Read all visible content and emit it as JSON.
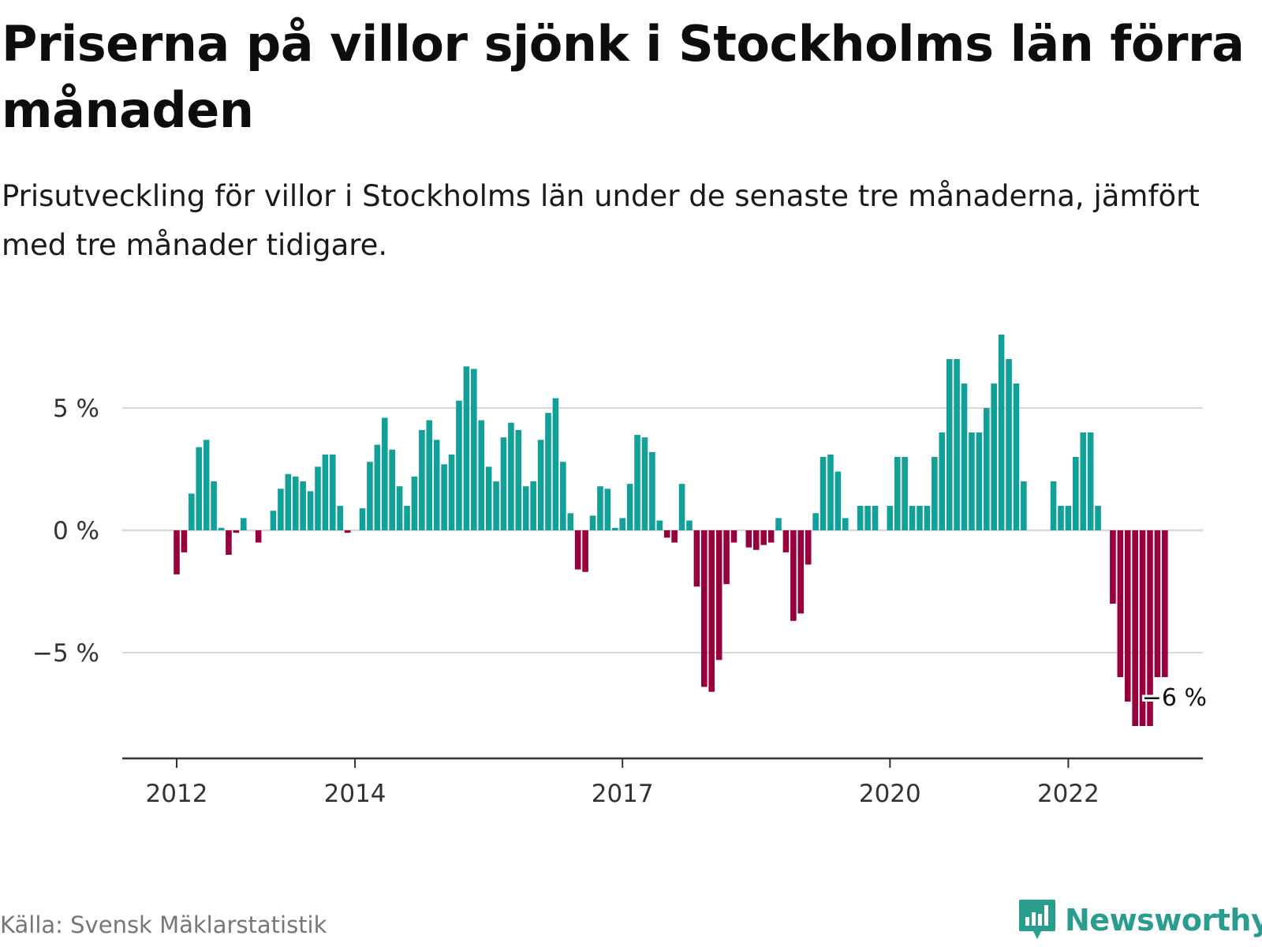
{
  "header": {
    "title": "Priserna på villor sjönk i Stockholms län förra månaden",
    "subtitle": "Prisutveckling för villor i Stockholms län under de senaste tre månaderna, jämfört med tre månader tidigare."
  },
  "footer": {
    "source": "Källa: Svensk Mäklarstatistik",
    "brand": "Newsworthy"
  },
  "colors": {
    "positive": "#12a199",
    "negative": "#98003d",
    "grid": "#d9d9d9",
    "axis": "#333333",
    "brand": "#2a9d8f"
  },
  "chart_data": {
    "type": "bar",
    "ylabel": "",
    "xlabel": "",
    "ylim": [
      -9.5,
      8.5
    ],
    "yticks": [
      {
        "value": 5,
        "label": "5 %"
      },
      {
        "value": 0,
        "label": "0 %"
      },
      {
        "value": -5,
        "label": "−5 %"
      }
    ],
    "xticks": [
      {
        "label": "2012",
        "index": 0
      },
      {
        "label": "2014",
        "index": 24
      },
      {
        "label": "2017",
        "index": 60
      },
      {
        "label": "2020",
        "index": 96
      },
      {
        "label": "2022",
        "index": 120
      }
    ],
    "grid": true,
    "annotation": {
      "label": "−6 %",
      "index": 133,
      "value": -6
    },
    "values": [
      -1.8,
      -0.9,
      1.5,
      3.4,
      3.7,
      2.0,
      0.1,
      -1.0,
      -0.1,
      0.5,
      null,
      -0.5,
      null,
      0.8,
      1.7,
      2.3,
      2.2,
      2.0,
      1.6,
      2.6,
      3.1,
      3.1,
      1.0,
      -0.1,
      null,
      0.9,
      2.8,
      3.5,
      4.6,
      3.3,
      1.8,
      1.0,
      2.2,
      4.1,
      4.5,
      3.7,
      2.7,
      3.1,
      5.3,
      6.7,
      6.6,
      4.5,
      2.6,
      2.0,
      3.8,
      4.4,
      4.1,
      1.8,
      2.0,
      3.7,
      4.8,
      5.4,
      2.8,
      0.7,
      -1.6,
      -1.7,
      0.6,
      1.8,
      1.7,
      0.1,
      0.5,
      1.9,
      3.9,
      3.8,
      3.2,
      0.4,
      -0.3,
      -0.5,
      1.9,
      0.4,
      -2.3,
      -6.4,
      -6.6,
      -5.3,
      -2.2,
      -0.5,
      null,
      -0.7,
      -0.8,
      -0.6,
      -0.5,
      0.5,
      -0.9,
      -3.7,
      -3.4,
      -1.4,
      0.7,
      3.0,
      3.1,
      2.4,
      0.5,
      null,
      1.0,
      1.0,
      1.0,
      null,
      1.0,
      3.0,
      3.0,
      1.0,
      1.0,
      1.0,
      3.0,
      4.0,
      7.0,
      7.0,
      6.0,
      4.0,
      4.0,
      5.0,
      6.0,
      8.0,
      7.0,
      6.0,
      2.0,
      null,
      null,
      null,
      2.0,
      1.0,
      1.0,
      3.0,
      4.0,
      4.0,
      1.0,
      null,
      -3.0,
      -6.0,
      -7.0,
      -8.0,
      -8.0,
      -8.0,
      -6.0,
      -6.0
    ]
  }
}
